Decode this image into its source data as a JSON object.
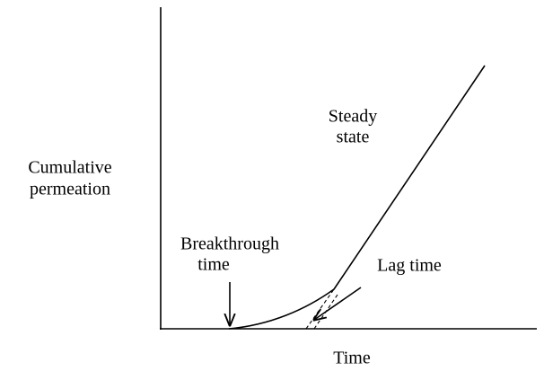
{
  "y_axis_label": [
    "Cumulative",
    "permeation"
  ],
  "x_axis_label": "Time",
  "annotations": {
    "steady_state": [
      "Steady",
      "state"
    ],
    "breakthrough_time": [
      "Breakthrough",
      "time"
    ],
    "lag_time": "Lag time"
  }
}
